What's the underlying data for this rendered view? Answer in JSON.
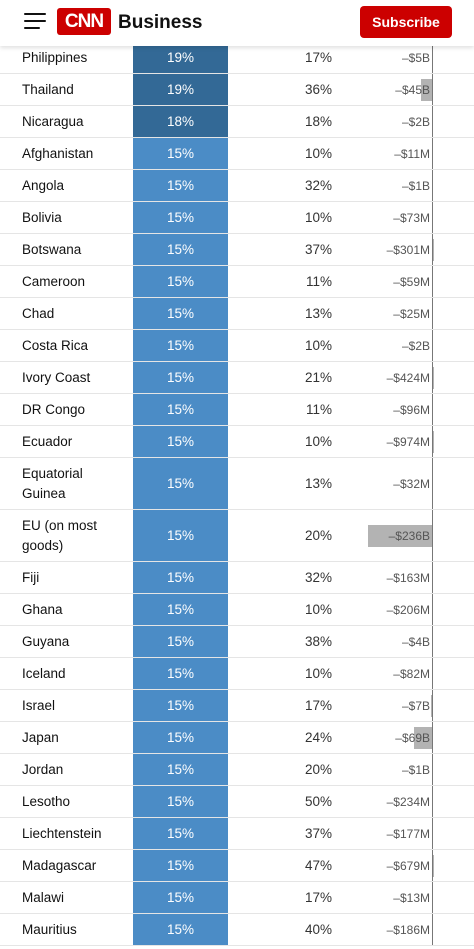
{
  "header": {
    "logo_text": "CNN",
    "section": "Business",
    "subscribe_label": "Subscribe",
    "brand_color": "#cc0000"
  },
  "colors": {
    "rate_dark": "#336996",
    "rate_15": "#4b8cc6",
    "deficit_bar": "#b3b3b3"
  },
  "rows": [
    {
      "country": "Philippines",
      "rate": "19%",
      "prev": "17%",
      "deficit": "–$5B",
      "deficit_value": 5,
      "tier": "dark",
      "height": 32
    },
    {
      "country": "Thailand",
      "rate": "19%",
      "prev": "36%",
      "deficit": "–$45B",
      "deficit_value": 45,
      "tier": "dark",
      "height": 32
    },
    {
      "country": "Nicaragua",
      "rate": "18%",
      "prev": "18%",
      "deficit": "–$2B",
      "deficit_value": 2,
      "tier": "dark",
      "height": 32
    },
    {
      "country": "Afghanistan",
      "rate": "15%",
      "prev": "10%",
      "deficit": "–$11M",
      "deficit_value": 0.011,
      "tier": "base",
      "height": 32
    },
    {
      "country": "Angola",
      "rate": "15%",
      "prev": "32%",
      "deficit": "–$1B",
      "deficit_value": 1,
      "tier": "base",
      "height": 32
    },
    {
      "country": "Bolivia",
      "rate": "15%",
      "prev": "10%",
      "deficit": "–$73M",
      "deficit_value": 0.073,
      "tier": "base",
      "height": 32
    },
    {
      "country": "Botswana",
      "rate": "15%",
      "prev": "37%",
      "deficit": "–$301M",
      "deficit_value": 0.301,
      "tier": "base",
      "height": 32
    },
    {
      "country": "Cameroon",
      "rate": "15%",
      "prev": "11%",
      "deficit": "–$59M",
      "deficit_value": 0.059,
      "tier": "base",
      "height": 32
    },
    {
      "country": "Chad",
      "rate": "15%",
      "prev": "13%",
      "deficit": "–$25M",
      "deficit_value": 0.025,
      "tier": "base",
      "height": 32
    },
    {
      "country": "Costa Rica",
      "rate": "15%",
      "prev": "10%",
      "deficit": "–$2B",
      "deficit_value": 2,
      "tier": "base",
      "height": 32
    },
    {
      "country": "Ivory Coast",
      "rate": "15%",
      "prev": "21%",
      "deficit": "–$424M",
      "deficit_value": 0.424,
      "tier": "base",
      "height": 32
    },
    {
      "country": "DR Congo",
      "rate": "15%",
      "prev": "11%",
      "deficit": "–$96M",
      "deficit_value": 0.096,
      "tier": "base",
      "height": 32
    },
    {
      "country": "Ecuador",
      "rate": "15%",
      "prev": "10%",
      "deficit": "–$974M",
      "deficit_value": 0.974,
      "tier": "base",
      "height": 32
    },
    {
      "country": "Equatorial Guinea",
      "rate": "15%",
      "prev": "13%",
      "deficit": "–$32M",
      "deficit_value": 0.032,
      "tier": "base",
      "height": 52
    },
    {
      "country": "EU (on most goods)",
      "rate": "15%",
      "prev": "20%",
      "deficit": "–$236B",
      "deficit_value": 236,
      "tier": "base",
      "height": 52
    },
    {
      "country": "Fiji",
      "rate": "15%",
      "prev": "32%",
      "deficit": "–$163M",
      "deficit_value": 0.163,
      "tier": "base",
      "height": 32
    },
    {
      "country": "Ghana",
      "rate": "15%",
      "prev": "10%",
      "deficit": "–$206M",
      "deficit_value": 0.206,
      "tier": "base",
      "height": 32
    },
    {
      "country": "Guyana",
      "rate": "15%",
      "prev": "38%",
      "deficit": "–$4B",
      "deficit_value": 4,
      "tier": "base",
      "height": 32
    },
    {
      "country": "Iceland",
      "rate": "15%",
      "prev": "10%",
      "deficit": "–$82M",
      "deficit_value": 0.082,
      "tier": "base",
      "height": 32
    },
    {
      "country": "Israel",
      "rate": "15%",
      "prev": "17%",
      "deficit": "–$7B",
      "deficit_value": 7,
      "tier": "base",
      "height": 32
    },
    {
      "country": "Japan",
      "rate": "15%",
      "prev": "24%",
      "deficit": "–$69B",
      "deficit_value": 69,
      "tier": "base",
      "height": 32
    },
    {
      "country": "Jordan",
      "rate": "15%",
      "prev": "20%",
      "deficit": "–$1B",
      "deficit_value": 1,
      "tier": "base",
      "height": 32
    },
    {
      "country": "Lesotho",
      "rate": "15%",
      "prev": "50%",
      "deficit": "–$234M",
      "deficit_value": 0.234,
      "tier": "base",
      "height": 32
    },
    {
      "country": "Liechtenstein",
      "rate": "15%",
      "prev": "37%",
      "deficit": "–$177M",
      "deficit_value": 0.177,
      "tier": "base",
      "height": 32
    },
    {
      "country": "Madagascar",
      "rate": "15%",
      "prev": "47%",
      "deficit": "–$679M",
      "deficit_value": 0.679,
      "tier": "base",
      "height": 32
    },
    {
      "country": "Malawi",
      "rate": "15%",
      "prev": "17%",
      "deficit": "–$13M",
      "deficit_value": 0.013,
      "tier": "base",
      "height": 32
    },
    {
      "country": "Mauritius",
      "rate": "15%",
      "prev": "40%",
      "deficit": "–$186M",
      "deficit_value": 0.186,
      "tier": "base",
      "height": 32
    }
  ]
}
